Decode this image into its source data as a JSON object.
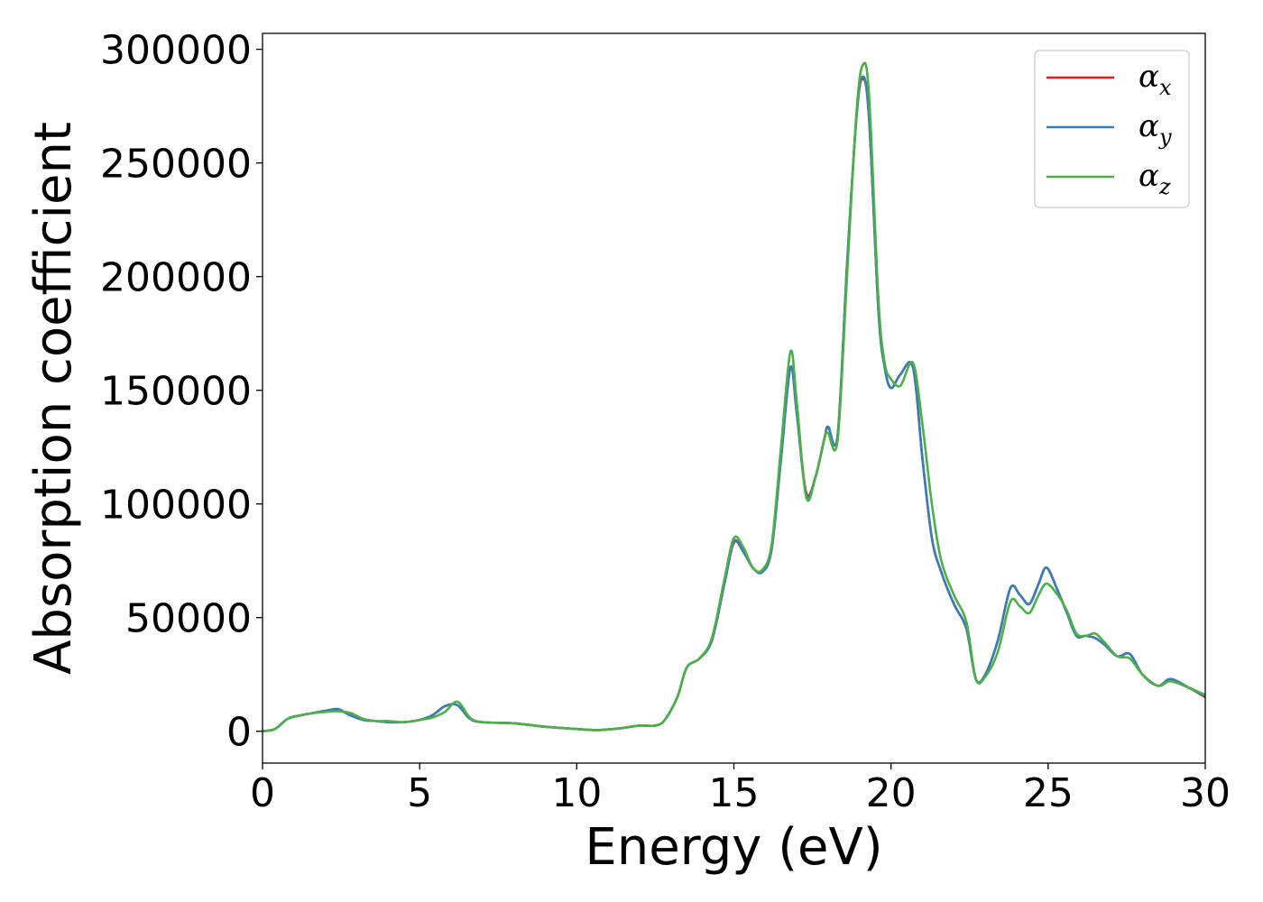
{
  "chart_data": {
    "type": "line",
    "title": "",
    "xlabel": "Energy (eV)",
    "ylabel": "Absorption coefficient",
    "xlim": [
      0,
      30
    ],
    "ylim": [
      -14000,
      307000
    ],
    "xticks": [
      0,
      5,
      10,
      15,
      20,
      25,
      30
    ],
    "yticks": [
      0,
      50000,
      100000,
      150000,
      200000,
      250000,
      300000
    ],
    "grid": false,
    "legend_position": "top-right",
    "series": [
      {
        "name": "α",
        "subscript": "x",
        "color": "#e41a1c",
        "x": [
          0,
          0.4,
          0.8,
          1.2,
          1.6,
          2.0,
          2.4,
          2.8,
          3.2,
          3.6,
          4.0,
          4.5,
          5.0,
          5.4,
          5.8,
          6.2,
          6.6,
          7.0,
          8.0,
          9.0,
          10.0,
          10.6,
          11.0,
          11.5,
          12.0,
          12.5,
          12.8,
          13.2,
          13.5,
          13.9,
          14.3,
          14.7,
          15.0,
          15.3,
          15.6,
          15.9,
          16.2,
          16.5,
          16.8,
          17.0,
          17.3,
          17.6,
          17.9,
          18.0,
          18.3,
          18.6,
          18.9,
          19.1,
          19.3,
          19.6,
          19.8,
          20.0,
          20.3,
          20.7,
          21.0,
          21.3,
          21.6,
          22.0,
          22.4,
          22.7,
          23.0,
          23.4,
          23.8,
          24.1,
          24.4,
          24.7,
          24.95,
          25.3,
          25.6,
          25.9,
          26.2,
          26.5,
          26.8,
          27.2,
          27.6,
          28.0,
          28.5,
          28.9,
          29.5,
          30.0
        ],
        "y": [
          0,
          1000,
          5500,
          7000,
          8000,
          9000,
          9500,
          7000,
          5000,
          4500,
          4000,
          4000,
          5000,
          7000,
          11000,
          11500,
          5500,
          4000,
          3500,
          2000,
          1000,
          500,
          800,
          1500,
          2500,
          2500,
          5000,
          15000,
          28000,
          32000,
          40000,
          65000,
          83000,
          79000,
          72000,
          70000,
          80000,
          120000,
          160000,
          140000,
          105000,
          112000,
          130000,
          134000,
          130000,
          205000,
          270000,
          287000,
          270000,
          185000,
          160000,
          151000,
          157000,
          160000,
          120000,
          85000,
          70000,
          56000,
          45000,
          23000,
          25000,
          40000,
          63000,
          60000,
          56000,
          65000,
          72000,
          62000,
          52000,
          42000,
          42000,
          41000,
          38000,
          33000,
          34000,
          25000,
          20000,
          23000,
          19000,
          15000
        ]
      },
      {
        "name": "α",
        "subscript": "y",
        "color": "#377eb8",
        "x": [
          0,
          0.4,
          0.8,
          1.2,
          1.6,
          2.0,
          2.4,
          2.8,
          3.2,
          3.6,
          4.0,
          4.5,
          5.0,
          5.4,
          5.8,
          6.2,
          6.6,
          7.0,
          8.0,
          9.0,
          10.0,
          10.6,
          11.0,
          11.5,
          12.0,
          12.5,
          12.8,
          13.2,
          13.5,
          13.9,
          14.3,
          14.7,
          15.0,
          15.3,
          15.6,
          15.9,
          16.2,
          16.5,
          16.8,
          17.0,
          17.3,
          17.6,
          17.9,
          18.0,
          18.3,
          18.6,
          18.9,
          19.1,
          19.3,
          19.6,
          19.8,
          20.0,
          20.3,
          20.7,
          21.0,
          21.3,
          21.6,
          22.0,
          22.4,
          22.7,
          23.0,
          23.4,
          23.8,
          24.1,
          24.4,
          24.7,
          24.95,
          25.3,
          25.6,
          25.9,
          26.2,
          26.5,
          26.8,
          27.2,
          27.6,
          28.0,
          28.5,
          28.9,
          29.5,
          30.0
        ],
        "y": [
          0,
          1000,
          5500,
          7000,
          8000,
          9000,
          9800,
          7000,
          5000,
          4500,
          4000,
          4000,
          5000,
          7000,
          11000,
          11500,
          5500,
          4000,
          3500,
          2000,
          1000,
          500,
          800,
          1500,
          2500,
          2500,
          5000,
          15000,
          28000,
          32000,
          40000,
          65000,
          83500,
          79000,
          72000,
          70000,
          80000,
          120000,
          160000,
          140000,
          104000,
          112000,
          130000,
          134000,
          130000,
          205000,
          270000,
          288000,
          270000,
          185000,
          160000,
          151000,
          157000,
          160000,
          120000,
          85000,
          70000,
          56000,
          45000,
          23000,
          25000,
          40000,
          63000,
          60000,
          56000,
          65000,
          72000,
          62000,
          52000,
          42000,
          42000,
          41000,
          38000,
          33000,
          34000,
          25000,
          20000,
          23000,
          19000,
          15500
        ]
      },
      {
        "name": "α",
        "subscript": "z",
        "color": "#4daf4a",
        "x": [
          0,
          0.4,
          0.8,
          1.2,
          1.6,
          2.0,
          2.4,
          2.8,
          3.2,
          3.6,
          4.0,
          4.5,
          5.0,
          5.4,
          5.8,
          6.2,
          6.6,
          7.0,
          8.0,
          9.0,
          10.0,
          10.6,
          11.0,
          11.5,
          12.0,
          12.5,
          12.8,
          13.2,
          13.5,
          13.9,
          14.3,
          14.7,
          15.0,
          15.3,
          15.6,
          15.9,
          16.2,
          16.5,
          16.8,
          17.0,
          17.3,
          17.6,
          17.9,
          18.0,
          18.3,
          18.6,
          18.9,
          19.1,
          19.3,
          19.6,
          19.8,
          20.0,
          20.3,
          20.7,
          21.0,
          21.3,
          21.6,
          22.0,
          22.4,
          22.7,
          23.0,
          23.4,
          23.8,
          24.1,
          24.4,
          24.7,
          24.95,
          25.3,
          25.6,
          25.9,
          26.2,
          26.5,
          26.8,
          27.2,
          27.6,
          28.0,
          28.5,
          28.9,
          29.5,
          30.0
        ],
        "y": [
          0,
          1000,
          5500,
          7000,
          8000,
          8500,
          8800,
          8000,
          5500,
          4500,
          4500,
          4000,
          5000,
          6000,
          8500,
          13000,
          6000,
          4000,
          3500,
          2000,
          1000,
          500,
          800,
          1500,
          2500,
          2500,
          5000,
          15000,
          28000,
          32000,
          41000,
          67000,
          85000,
          81000,
          72000,
          71000,
          82000,
          125000,
          167000,
          145000,
          103000,
          112000,
          130000,
          131000,
          128000,
          200000,
          272000,
          293000,
          280000,
          190000,
          162000,
          155000,
          152000,
          162000,
          135000,
          100000,
          75000,
          60000,
          48000,
          23000,
          24000,
          35000,
          57000,
          55000,
          52000,
          60000,
          65000,
          60000,
          53000,
          43000,
          42000,
          43000,
          39000,
          33000,
          32000,
          25000,
          20000,
          22000,
          19000,
          16000
        ]
      }
    ]
  }
}
